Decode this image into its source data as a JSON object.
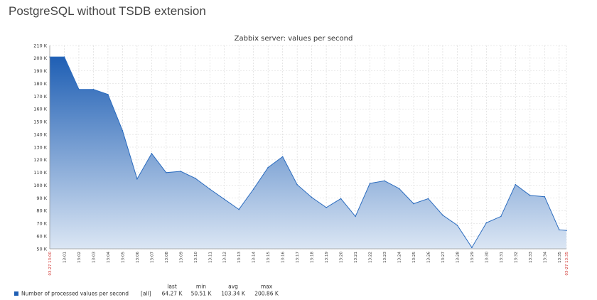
{
  "page": {
    "heading": "PostgreSQL without TSDB extension"
  },
  "colors": {
    "area_top": "#1f5fb4",
    "area_bottom": "#dbe6f4",
    "line": "#2b6cbf",
    "grid": "#d6d6d6",
    "edge_tick": "#d0312d"
  },
  "chart_data": {
    "type": "area",
    "title": "Zabbix server: values per second",
    "xlabel": "",
    "ylabel": "",
    "ylim": [
      50000,
      210000
    ],
    "yticks": [
      50000,
      60000,
      70000,
      80000,
      90000,
      100000,
      110000,
      120000,
      130000,
      140000,
      150000,
      160000,
      170000,
      180000,
      190000,
      200000,
      210000
    ],
    "ytick_labels": [
      "50 K",
      "60 K",
      "70 K",
      "80 K",
      "90 K",
      "100 K",
      "110 K",
      "120 K",
      "130 K",
      "140 K",
      "150 K",
      "160 K",
      "170 K",
      "180 K",
      "190 K",
      "200 K",
      "210 K"
    ],
    "x_range": [
      "13:00",
      "13:35"
    ],
    "xtick_labels": [
      "03-27 13:00",
      "13:01",
      "13:02",
      "13:03",
      "13:04",
      "13:05",
      "13:06",
      "13:07",
      "13:08",
      "13:09",
      "13:10",
      "13:11",
      "13:12",
      "13:13",
      "13:14",
      "13:15",
      "13:16",
      "13:17",
      "13:18",
      "13:19",
      "13:20",
      "13:21",
      "13:22",
      "13:23",
      "13:24",
      "13:25",
      "13:26",
      "13:27",
      "13:28",
      "13:29",
      "13:30",
      "13:31",
      "13:32",
      "13:33",
      "13:34",
      "13:35",
      "03-27 13:35"
    ],
    "grid": true,
    "series": [
      {
        "name": "Number of processed values per second",
        "points": [
          [
            "13:00",
            201000
          ],
          [
            "13:01",
            201000
          ],
          [
            "13:02",
            175500
          ],
          [
            "13:03",
            175500
          ],
          [
            "13:04",
            171500
          ],
          [
            "13:05",
            143000
          ],
          [
            "13:06",
            105000
          ],
          [
            "13:07",
            125000
          ],
          [
            "13:08",
            110000
          ],
          [
            "13:09",
            111000
          ],
          [
            "13:10",
            105500
          ],
          [
            "13:11",
            97000
          ],
          [
            "13:12",
            89000
          ],
          [
            "13:13",
            81000
          ],
          [
            "13:14",
            97000
          ],
          [
            "13:15",
            114000
          ],
          [
            "13:16",
            122500
          ],
          [
            "13:17",
            100500
          ],
          [
            "13:18",
            90500
          ],
          [
            "13:19",
            82500
          ],
          [
            "13:20",
            89500
          ],
          [
            "13:21",
            75500
          ],
          [
            "13:22",
            101500
          ],
          [
            "13:23",
            103500
          ],
          [
            "13:24",
            97500
          ],
          [
            "13:25",
            85500
          ],
          [
            "13:26",
            89500
          ],
          [
            "13:27",
            76500
          ],
          [
            "13:28",
            68500
          ],
          [
            "13:29",
            51000
          ],
          [
            "13:30",
            70500
          ],
          [
            "13:31",
            75500
          ],
          [
            "13:32",
            100500
          ],
          [
            "13:33",
            92000
          ],
          [
            "13:34",
            91000
          ],
          [
            "13:35",
            65000
          ],
          [
            "13:35:30",
            64500
          ]
        ]
      }
    ],
    "legend": {
      "position": "bottom-left",
      "label": "Number of processed values per second",
      "scope": "[all]",
      "headers": [
        "last",
        "min",
        "avg",
        "max"
      ],
      "values": [
        "64.27 K",
        "50.51 K",
        "103.34 K",
        "200.86 K"
      ]
    }
  }
}
